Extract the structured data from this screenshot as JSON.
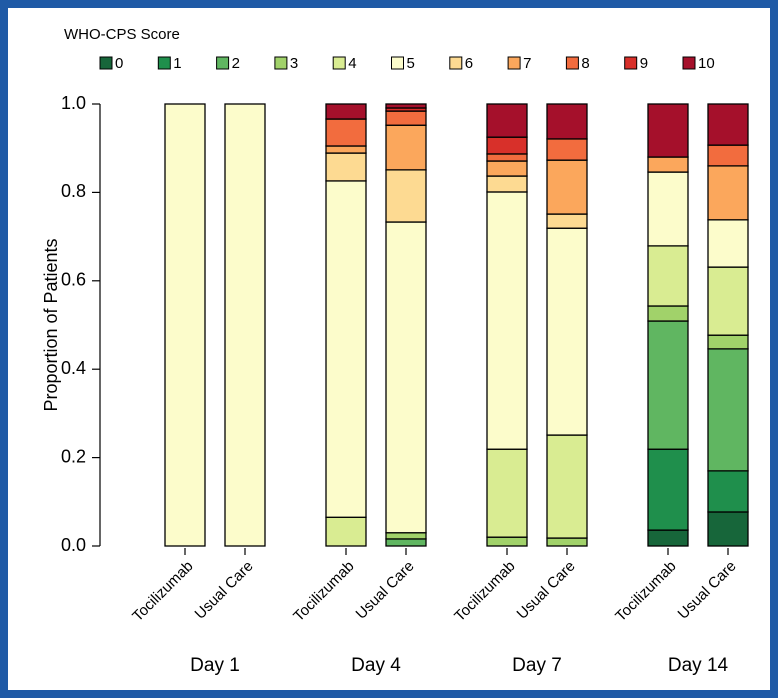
{
  "chart_data": {
    "type": "stacked-bar",
    "ylabel": "Proportion of Patients",
    "legend_title": "WHO-CPS Score",
    "categories": [
      "Tocilizumab",
      "Usual Care",
      "Tocilizumab",
      "Usual Care",
      "Tocilizumab",
      "Usual Care",
      "Tocilizumab",
      "Usual Care"
    ],
    "groups": [
      "Day 1",
      "Day 4",
      "Day 7",
      "Day 14"
    ],
    "ylim": [
      0,
      1
    ],
    "yticks": [
      {
        "value": 0,
        "label": "0.0"
      },
      0.2,
      0.4,
      0.6,
      0.8,
      {
        "value": 1,
        "label": "1.0"
      }
    ],
    "series": [
      {
        "name": "0",
        "color": "#17663a",
        "values": [
          0,
          0,
          0,
          0,
          0,
          0,
          0.036,
          0.077
        ]
      },
      {
        "name": "1",
        "color": "#1f8f4c",
        "values": [
          0,
          0,
          0,
          0,
          0,
          0,
          0.183,
          0.093
        ]
      },
      {
        "name": "2",
        "color": "#60b661",
        "values": [
          0,
          0,
          0,
          0.016,
          0,
          0,
          0.29,
          0.276
        ]
      },
      {
        "name": "3",
        "color": "#a1d26a",
        "values": [
          0,
          0,
          0,
          0.014,
          0.02,
          0.018,
          0.034,
          0.031
        ]
      },
      {
        "name": "4",
        "color": "#d9ec92",
        "values": [
          0,
          0,
          0.065,
          0,
          0.199,
          0.233,
          0.136,
          0.154
        ]
      },
      {
        "name": "5",
        "color": "#fcfccb",
        "values": [
          1,
          1,
          0.761,
          0.703,
          0.582,
          0.468,
          0.167,
          0.107
        ]
      },
      {
        "name": "6",
        "color": "#fdda92",
        "values": [
          0,
          0,
          0.063,
          0.118,
          0.036,
          0.032,
          0,
          0
        ]
      },
      {
        "name": "7",
        "color": "#fba75c",
        "values": [
          0,
          0,
          0.016,
          0.101,
          0.034,
          0.122,
          0.034,
          0.122
        ]
      },
      {
        "name": "8",
        "color": "#f26c3e",
        "values": [
          0,
          0,
          0.061,
          0.032,
          0.016,
          0.048,
          0,
          0.047
        ]
      },
      {
        "name": "9",
        "color": "#d8302a",
        "values": [
          0,
          0,
          0,
          0.007,
          0.038,
          0,
          0,
          0
        ]
      },
      {
        "name": "10",
        "color": "#a5102b",
        "values": [
          0,
          0,
          0.034,
          0.009,
          0.075,
          0.079,
          0.12,
          0.093
        ]
      }
    ]
  }
}
